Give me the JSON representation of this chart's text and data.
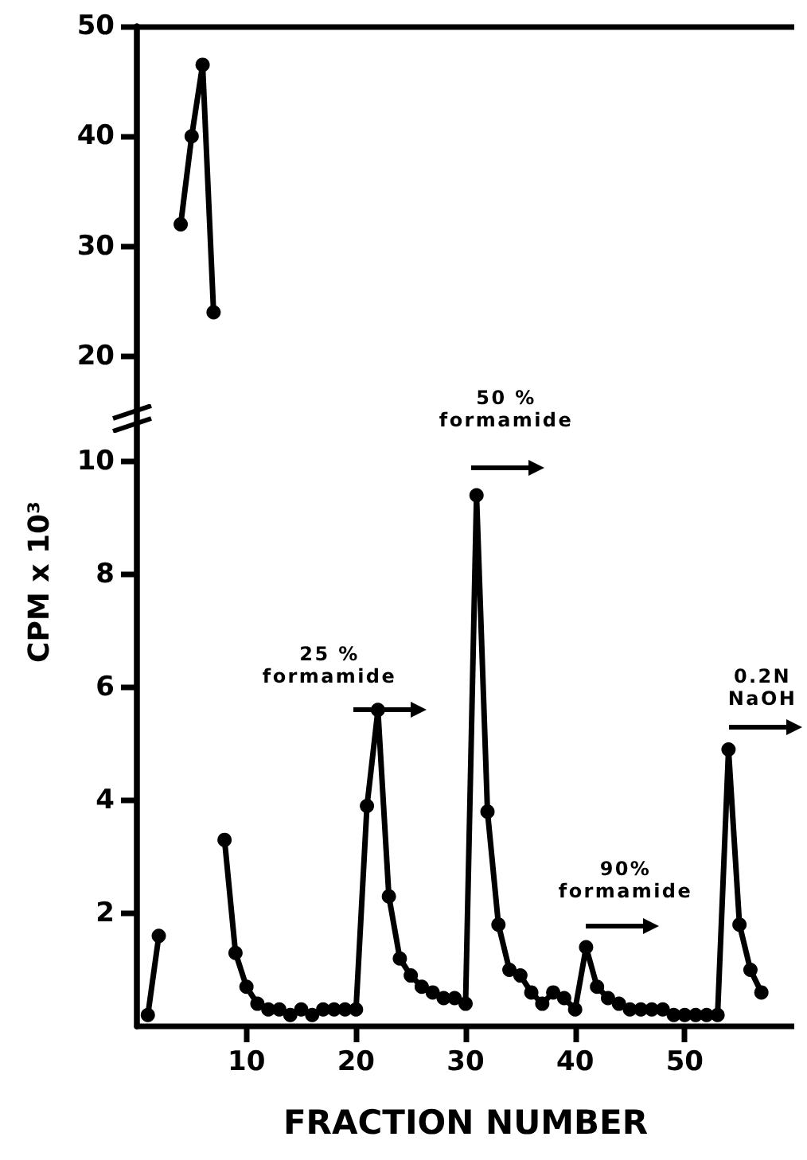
{
  "chart_data": {
    "type": "line",
    "x": [
      1,
      2,
      4,
      5,
      6,
      7,
      8,
      9,
      10,
      11,
      12,
      13,
      14,
      15,
      16,
      17,
      18,
      19,
      20,
      21,
      22,
      23,
      24,
      25,
      26,
      27,
      28,
      29,
      30,
      31,
      32,
      33,
      34,
      35,
      36,
      37,
      38,
      39,
      40,
      41,
      42,
      43,
      44,
      45,
      46,
      47,
      48,
      49,
      50,
      51,
      52,
      53,
      54,
      55,
      56,
      57
    ],
    "series": [
      {
        "color": "#000000",
        "values": [
          0.2,
          1.6,
          null,
          null,
          null,
          null,
          3.3,
          1.3,
          0.7,
          0.4,
          0.3,
          0.3,
          0.2,
          0.3,
          0.2,
          0.3,
          0.3,
          0.3,
          0.3,
          3.9,
          5.6,
          2.3,
          1.2,
          0.9,
          0.7,
          0.6,
          0.5,
          0.5,
          0.4,
          9.4,
          3.8,
          1.8,
          1.0,
          0.9,
          0.6,
          0.4,
          0.6,
          0.5,
          0.3,
          1.4,
          0.7,
          0.5,
          0.4,
          0.3,
          0.3,
          0.3,
          0.3,
          0.2,
          0.2,
          0.2,
          0.2,
          0.2,
          4.9,
          1.8,
          1.0,
          0.6
        ]
      },
      {
        "color": "#000000",
        "axis": "y2",
        "values": [
          null,
          null,
          32,
          40,
          46.5,
          24,
          null,
          null,
          null,
          null,
          null,
          null,
          null,
          null,
          null,
          null,
          null,
          null,
          null,
          null,
          null,
          null,
          null,
          null,
          null,
          null,
          null,
          null,
          null,
          null,
          null,
          null,
          null,
          null,
          null,
          null,
          null,
          null,
          null,
          null,
          null,
          null,
          null,
          null,
          null,
          null,
          null,
          null,
          null,
          null,
          null,
          null,
          null,
          null,
          null,
          null
        ]
      }
    ],
    "xlim": [
      0,
      60
    ],
    "xticks": [
      10,
      20,
      30,
      40,
      50
    ],
    "ylim": [
      0,
      17.7
    ],
    "yticks": [
      2,
      4,
      6,
      8,
      10
    ],
    "y2lim": [
      -40.9,
      50
    ],
    "y2ticks": [
      20,
      30,
      40,
      50
    ],
    "xlabel": "FRACTION NUMBER",
    "y2label": "CPM x 10³",
    "marker": "circle",
    "annotations": [
      "25 %\nformamide",
      "50 %\nformamide",
      "90%\nformamide",
      "0.2N\nNaOH"
    ]
  }
}
